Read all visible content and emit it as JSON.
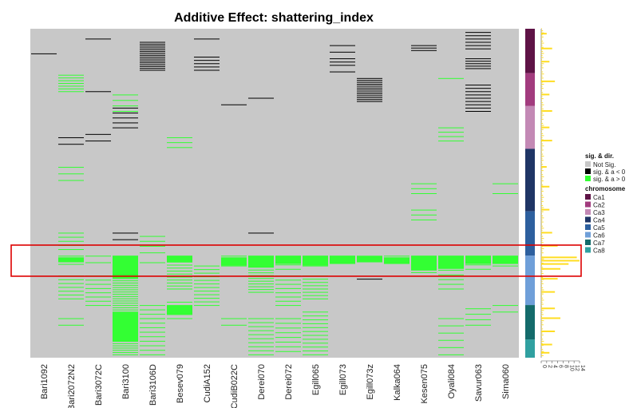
{
  "chart_data": {
    "type": "heatmap",
    "title": "Additive Effect: shattering_index",
    "columns": [
      "Bari1092",
      "Bari2072N2",
      "Bari3072C",
      "Bari3100",
      "Bari3106D",
      "Besev079",
      "CudiA152",
      "CudiB022C",
      "Derei070",
      "Derei072",
      "Egill065",
      "Egill073",
      "Egill073z",
      "Kalka064",
      "Kesen075",
      "Oyali084",
      "Savur063",
      "Sirna060"
    ],
    "colors": {
      "not_sig": "#c8c8c8",
      "neg": "#000000",
      "pos": "#33ff33",
      "highlight": "#dd0000",
      "profile": "#ffdd22"
    },
    "bands": [
      {
        "col": 0,
        "start": 0.075,
        "end": 0.079,
        "kind": "neg",
        "lines": 1
      },
      {
        "col": 1,
        "start": 0.14,
        "end": 0.19,
        "kind": "pos",
        "lines": 7
      },
      {
        "col": 1,
        "start": 0.33,
        "end": 0.35,
        "kind": "neg",
        "lines": 2
      },
      {
        "col": 1,
        "start": 0.42,
        "end": 0.46,
        "kind": "pos",
        "lines": 3
      },
      {
        "col": 1,
        "start": 0.62,
        "end": 0.67,
        "kind": "pos",
        "lines": 5
      },
      {
        "col": 1,
        "start": 0.69,
        "end": 0.715,
        "kind": "pos",
        "lines": 4
      },
      {
        "col": 1,
        "start": 0.75,
        "end": 0.82,
        "kind": "pos",
        "lines": 7
      },
      {
        "col": 1,
        "start": 0.88,
        "end": 0.9,
        "kind": "pos",
        "lines": 2
      },
      {
        "col": 2,
        "start": 0.03,
        "end": 0.034,
        "kind": "neg",
        "lines": 1
      },
      {
        "col": 2,
        "start": 0.19,
        "end": 0.2,
        "kind": "neg",
        "lines": 1
      },
      {
        "col": 2,
        "start": 0.32,
        "end": 0.34,
        "kind": "neg",
        "lines": 2
      },
      {
        "col": 2,
        "start": 0.69,
        "end": 0.71,
        "kind": "pos",
        "lines": 2
      },
      {
        "col": 2,
        "start": 0.75,
        "end": 0.84,
        "kind": "pos",
        "lines": 8
      },
      {
        "col": 3,
        "start": 0.2,
        "end": 0.25,
        "kind": "pos",
        "lines": 4
      },
      {
        "col": 3,
        "start": 0.24,
        "end": 0.3,
        "kind": "neg",
        "lines": 5
      },
      {
        "col": 3,
        "start": 0.62,
        "end": 0.64,
        "kind": "neg",
        "lines": 2
      },
      {
        "col": 3,
        "start": 0.69,
        "end": 0.99,
        "kind": "pos",
        "lines": 45
      },
      {
        "col": 4,
        "start": 0.04,
        "end": 0.125,
        "kind": "neg",
        "lines": 16
      },
      {
        "col": 4,
        "start": 0.63,
        "end": 0.66,
        "kind": "pos",
        "lines": 3
      },
      {
        "col": 4,
        "start": 0.68,
        "end": 0.71,
        "kind": "pos",
        "lines": 2
      },
      {
        "col": 4,
        "start": 0.84,
        "end": 0.88,
        "kind": "pos",
        "lines": 4
      },
      {
        "col": 4,
        "start": 0.88,
        "end": 0.99,
        "kind": "pos",
        "lines": 9
      },
      {
        "col": 5,
        "start": 0.33,
        "end": 0.36,
        "kind": "pos",
        "lines": 3
      },
      {
        "col": 5,
        "start": 0.69,
        "end": 0.79,
        "kind": "pos",
        "lines": 12
      },
      {
        "col": 5,
        "start": 0.83,
        "end": 0.88,
        "kind": "pos",
        "lines": 5
      },
      {
        "col": 6,
        "start": 0.03,
        "end": 0.034,
        "kind": "neg",
        "lines": 1
      },
      {
        "col": 6,
        "start": 0.085,
        "end": 0.125,
        "kind": "neg",
        "lines": 5
      },
      {
        "col": 6,
        "start": 0.72,
        "end": 0.84,
        "kind": "pos",
        "lines": 12
      },
      {
        "col": 7,
        "start": 0.23,
        "end": 0.235,
        "kind": "neg",
        "lines": 1
      },
      {
        "col": 7,
        "start": 0.69,
        "end": 0.72,
        "kind": "pos",
        "lines": 3
      },
      {
        "col": 7,
        "start": 0.88,
        "end": 0.9,
        "kind": "pos",
        "lines": 2
      },
      {
        "col": 8,
        "start": 0.21,
        "end": 0.215,
        "kind": "neg",
        "lines": 1
      },
      {
        "col": 8,
        "start": 0.62,
        "end": 0.625,
        "kind": "neg",
        "lines": 1
      },
      {
        "col": 8,
        "start": 0.69,
        "end": 0.8,
        "kind": "pos",
        "lines": 14
      },
      {
        "col": 8,
        "start": 0.88,
        "end": 0.99,
        "kind": "pos",
        "lines": 10
      },
      {
        "col": 9,
        "start": 0.69,
        "end": 0.73,
        "kind": "pos",
        "lines": 4
      },
      {
        "col": 9,
        "start": 0.75,
        "end": 0.84,
        "kind": "pos",
        "lines": 8
      },
      {
        "col": 9,
        "start": 0.88,
        "end": 0.98,
        "kind": "pos",
        "lines": 8
      },
      {
        "col": 10,
        "start": 0.69,
        "end": 0.72,
        "kind": "pos",
        "lines": 3
      },
      {
        "col": 10,
        "start": 0.75,
        "end": 0.82,
        "kind": "pos",
        "lines": 8
      },
      {
        "col": 10,
        "start": 0.86,
        "end": 0.99,
        "kind": "pos",
        "lines": 12
      },
      {
        "col": 11,
        "start": 0.05,
        "end": 0.13,
        "kind": "neg",
        "lines": 5
      },
      {
        "col": 11,
        "start": 0.1,
        "end": 0.11,
        "kind": "neg",
        "lines": 1
      },
      {
        "col": 11,
        "start": 0.69,
        "end": 0.71,
        "kind": "pos",
        "lines": 2
      },
      {
        "col": 12,
        "start": 0.15,
        "end": 0.22,
        "kind": "neg",
        "lines": 13
      },
      {
        "col": 12,
        "start": 0.76,
        "end": 0.765,
        "kind": "neg",
        "lines": 1
      },
      {
        "col": 13,
        "start": 0.69,
        "end": 0.71,
        "kind": "pos",
        "lines": 2
      },
      {
        "col": 14,
        "start": 0.05,
        "end": 0.065,
        "kind": "neg",
        "lines": 3
      },
      {
        "col": 14,
        "start": 0.47,
        "end": 0.5,
        "kind": "pos",
        "lines": 3
      },
      {
        "col": 14,
        "start": 0.55,
        "end": 0.58,
        "kind": "pos",
        "lines": 3
      },
      {
        "col": 14,
        "start": 0.69,
        "end": 0.74,
        "kind": "pos",
        "lines": 5
      },
      {
        "col": 15,
        "start": 0.15,
        "end": 0.16,
        "kind": "pos",
        "lines": 1
      },
      {
        "col": 15,
        "start": 0.3,
        "end": 0.34,
        "kind": "pos",
        "lines": 4
      },
      {
        "col": 15,
        "start": 0.69,
        "end": 0.79,
        "kind": "pos",
        "lines": 8
      },
      {
        "col": 15,
        "start": 0.88,
        "end": 0.99,
        "kind": "pos",
        "lines": 6
      },
      {
        "col": 16,
        "start": 0.01,
        "end": 0.06,
        "kind": "neg",
        "lines": 6
      },
      {
        "col": 16,
        "start": 0.09,
        "end": 0.12,
        "kind": "neg",
        "lines": 5
      },
      {
        "col": 16,
        "start": 0.17,
        "end": 0.25,
        "kind": "neg",
        "lines": 9
      },
      {
        "col": 16,
        "start": 0.69,
        "end": 0.73,
        "kind": "pos",
        "lines": 4
      },
      {
        "col": 16,
        "start": 0.85,
        "end": 0.9,
        "kind": "pos",
        "lines": 4
      },
      {
        "col": 17,
        "start": 0.47,
        "end": 0.5,
        "kind": "pos",
        "lines": 2
      },
      {
        "col": 17,
        "start": 0.69,
        "end": 0.72,
        "kind": "pos",
        "lines": 3
      },
      {
        "col": 17,
        "start": 0.84,
        "end": 0.86,
        "kind": "pos",
        "lines": 2
      }
    ],
    "solid_pos": [
      {
        "col": 1,
        "start": 0.695,
        "end": 0.71
      },
      {
        "col": 3,
        "start": 0.69,
        "end": 0.76
      },
      {
        "col": 3,
        "start": 0.86,
        "end": 0.95
      },
      {
        "col": 5,
        "start": 0.69,
        "end": 0.71
      },
      {
        "col": 5,
        "start": 0.84,
        "end": 0.87
      },
      {
        "col": 7,
        "start": 0.695,
        "end": 0.72
      },
      {
        "col": 8,
        "start": 0.69,
        "end": 0.725
      },
      {
        "col": 9,
        "start": 0.69,
        "end": 0.715
      },
      {
        "col": 10,
        "start": 0.69,
        "end": 0.72
      },
      {
        "col": 11,
        "start": 0.69,
        "end": 0.715
      },
      {
        "col": 12,
        "start": 0.69,
        "end": 0.71
      },
      {
        "col": 13,
        "start": 0.695,
        "end": 0.715
      },
      {
        "col": 14,
        "start": 0.69,
        "end": 0.735
      },
      {
        "col": 15,
        "start": 0.69,
        "end": 0.73
      },
      {
        "col": 16,
        "start": 0.69,
        "end": 0.715
      },
      {
        "col": 17,
        "start": 0.69,
        "end": 0.715
      }
    ],
    "chromosomes": [
      {
        "name": "Ca1",
        "start": 0.0,
        "end": 0.135,
        "color": "#5e1346"
      },
      {
        "name": "Ca2",
        "start": 0.135,
        "end": 0.235,
        "color": "#a23b7e"
      },
      {
        "name": "Ca3",
        "start": 0.235,
        "end": 0.365,
        "color": "#c389b5"
      },
      {
        "name": "Ca4",
        "start": 0.365,
        "end": 0.555,
        "color": "#1f3565"
      },
      {
        "name": "Ca5",
        "start": 0.555,
        "end": 0.69,
        "color": "#2d5f9e"
      },
      {
        "name": "Ca6",
        "start": 0.69,
        "end": 0.84,
        "color": "#6f9fd9"
      },
      {
        "name": "Ca7",
        "start": 0.84,
        "end": 0.945,
        "color": "#146b6b"
      },
      {
        "name": "Ca8",
        "start": 0.945,
        "end": 1.0,
        "color": "#30a0a0"
      }
    ],
    "profile_axis": {
      "ticks": [
        "0",
        "2",
        "4",
        "6",
        "8",
        "10",
        "12",
        "14"
      ]
    },
    "profile_peaks": [
      {
        "y": 0.015,
        "w": 2
      },
      {
        "y": 0.06,
        "w": 4
      },
      {
        "y": 0.1,
        "w": 3
      },
      {
        "y": 0.16,
        "w": 5
      },
      {
        "y": 0.2,
        "w": 3
      },
      {
        "y": 0.25,
        "w": 4
      },
      {
        "y": 0.3,
        "w": 3
      },
      {
        "y": 0.34,
        "w": 4
      },
      {
        "y": 0.42,
        "w": 2
      },
      {
        "y": 0.48,
        "w": 3
      },
      {
        "y": 0.55,
        "w": 3
      },
      {
        "y": 0.62,
        "w": 4
      },
      {
        "y": 0.66,
        "w": 6
      },
      {
        "y": 0.695,
        "w": 13
      },
      {
        "y": 0.705,
        "w": 14
      },
      {
        "y": 0.715,
        "w": 10
      },
      {
        "y": 0.73,
        "w": 7
      },
      {
        "y": 0.76,
        "w": 6
      },
      {
        "y": 0.8,
        "w": 5
      },
      {
        "y": 0.85,
        "w": 5
      },
      {
        "y": 0.88,
        "w": 7
      },
      {
        "y": 0.92,
        "w": 5
      },
      {
        "y": 0.96,
        "w": 4
      },
      {
        "y": 0.985,
        "w": 3
      }
    ],
    "legend": {
      "sig_title": "sig. & dir.",
      "sig_items": [
        {
          "label": "Not Sig.",
          "color": "#c8c8c8"
        },
        {
          "label": "sig. & a < 0",
          "color": "#000000"
        },
        {
          "label": "sig. & a > 0",
          "color": "#33ff33"
        }
      ],
      "chrom_title": "chromosome"
    },
    "highlight_band": {
      "start": 0.665,
      "end": 0.745
    }
  }
}
